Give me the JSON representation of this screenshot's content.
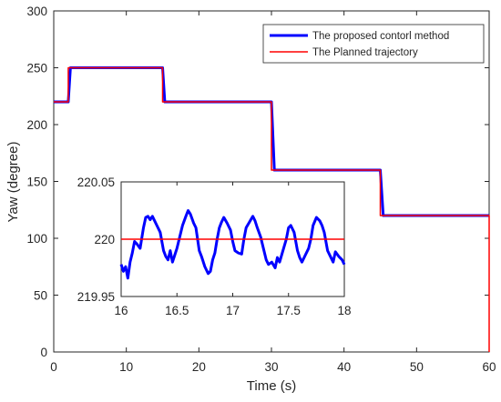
{
  "chart_data": [
    {
      "type": "line",
      "xlabel": "Time (s)",
      "ylabel": "Yaw (degree)",
      "xlim": [
        0,
        60
      ],
      "ylim": [
        0,
        300
      ],
      "xticks": [
        "0",
        "10",
        "20",
        "30",
        "40",
        "50",
        "60"
      ],
      "yticks": [
        "0",
        "50",
        "100",
        "150",
        "200",
        "250",
        "300"
      ],
      "legend_position": "top-right",
      "grid": false,
      "series": [
        {
          "name": "The proposed contorl method",
          "color": "#0000ff",
          "x": [
            0,
            2,
            2.3,
            15,
            15.3,
            30,
            30.4,
            45,
            45.4,
            60
          ],
          "y": [
            220,
            220,
            250,
            250,
            220,
            220,
            160,
            160,
            120,
            120
          ]
        },
        {
          "name": "The Planned trajectory",
          "color": "#ff0000",
          "x": [
            0,
            2,
            2,
            15,
            15,
            30,
            30,
            45,
            45,
            60,
            60
          ],
          "y": [
            220,
            220,
            250,
            250,
            220,
            220,
            160,
            160,
            120,
            120,
            0
          ]
        }
      ]
    },
    {
      "type": "line",
      "xlim": [
        16,
        18
      ],
      "ylim": [
        219.95,
        220.05
      ],
      "xticks": [
        "16",
        "16.5",
        "17",
        "17.5",
        "18"
      ],
      "yticks": [
        "219.95",
        "220",
        "220.05"
      ],
      "grid": false,
      "series": [
        {
          "color": "#0000ff",
          "x": [
            16.0,
            16.02,
            16.04,
            16.06,
            16.08,
            16.1,
            16.12,
            16.14,
            16.17,
            16.2,
            16.22,
            16.24,
            16.26,
            16.28,
            16.3,
            16.32,
            16.35,
            16.38,
            16.4,
            16.42,
            16.44,
            16.46,
            16.48,
            16.5,
            16.52,
            16.55,
            16.58,
            16.6,
            16.62,
            16.65,
            16.67,
            16.7,
            16.72,
            16.75,
            16.78,
            16.8,
            16.82,
            16.84,
            16.86,
            16.88,
            16.9,
            16.92,
            16.95,
            16.98,
            17.0,
            17.02,
            17.05,
            17.08,
            17.1,
            17.12,
            17.15,
            17.18,
            17.2,
            17.22,
            17.25,
            17.28,
            17.3,
            17.32,
            17.35,
            17.38,
            17.4,
            17.42,
            17.45,
            17.48,
            17.5,
            17.52,
            17.55,
            17.58,
            17.6,
            17.62,
            17.65,
            17.68,
            17.7,
            17.72,
            17.75,
            17.78,
            17.8,
            17.82,
            17.85,
            17.88,
            17.9,
            17.92,
            17.95,
            17.98,
            18.0
          ],
          "y": [
            219.978,
            219.972,
            219.976,
            219.966,
            219.98,
            219.988,
            219.998,
            219.996,
            219.992,
            220.01,
            220.019,
            220.02,
            220.017,
            220.02,
            220.016,
            220.012,
            220.006,
            219.99,
            219.985,
            219.982,
            219.99,
            219.98,
            219.986,
            219.992,
            220.0,
            220.012,
            220.02,
            220.025,
            220.022,
            220.014,
            220.01,
            219.99,
            219.985,
            219.976,
            219.97,
            219.972,
            219.982,
            219.988,
            220.0,
            220.01,
            220.015,
            220.019,
            220.014,
            220.008,
            219.998,
            219.99,
            219.988,
            219.987,
            220.0,
            220.01,
            220.015,
            220.02,
            220.016,
            220.01,
            220.002,
            219.99,
            219.982,
            219.978,
            219.98,
            219.975,
            219.984,
            219.98,
            219.99,
            220.0,
            220.01,
            220.012,
            220.006,
            219.99,
            219.984,
            219.98,
            219.986,
            219.992,
            220.0,
            220.012,
            220.019,
            220.016,
            220.012,
            220.006,
            219.99,
            219.984,
            219.98,
            219.989,
            219.985,
            219.982,
            219.978
          ]
        },
        {
          "color": "#ff0000",
          "x": [
            16,
            18
          ],
          "y": [
            220,
            220
          ]
        }
      ]
    }
  ]
}
